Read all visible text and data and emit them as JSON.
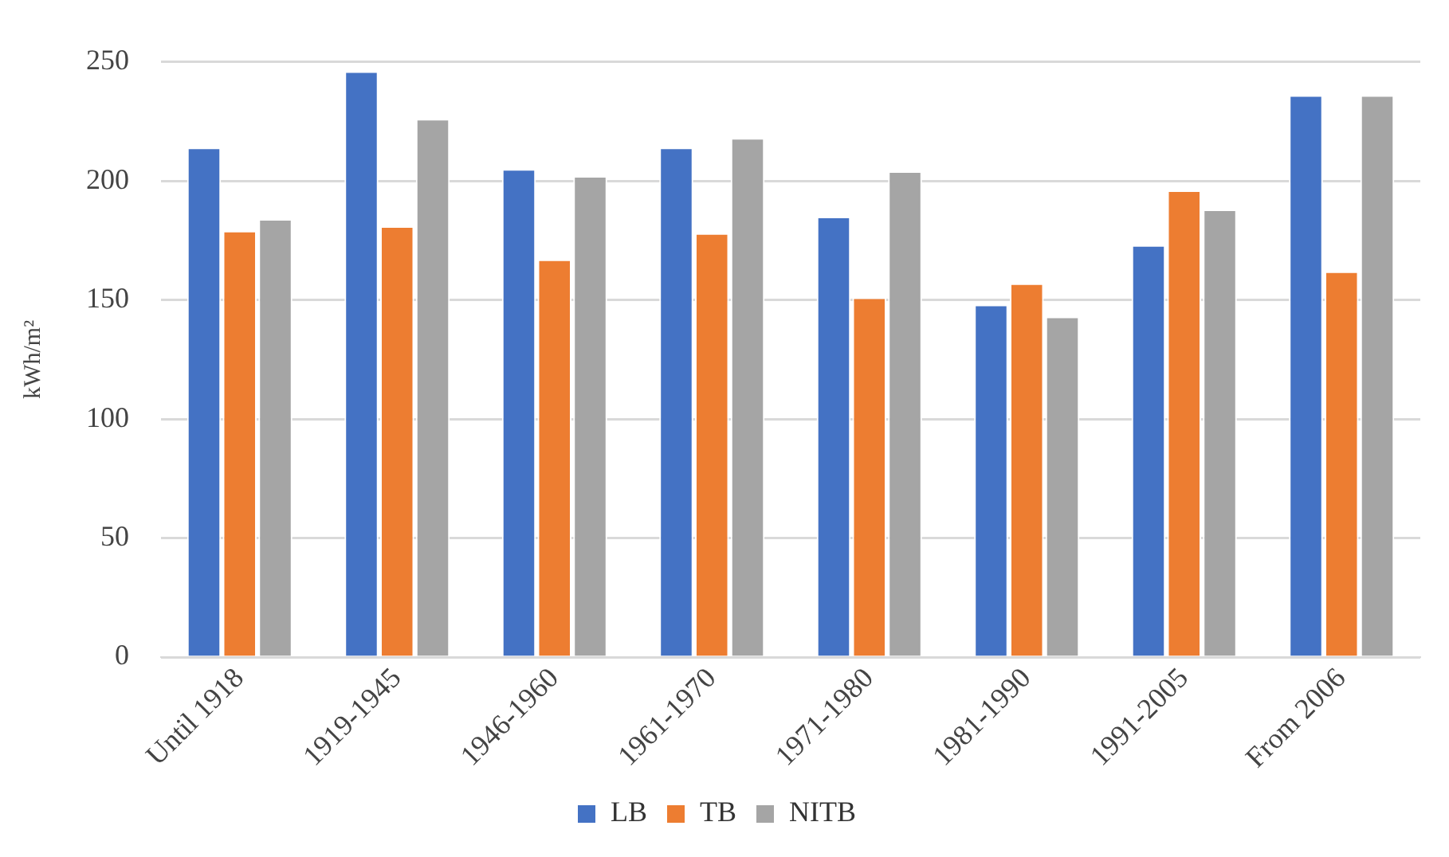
{
  "chart_data": {
    "type": "bar",
    "ylabel": "kWh/m²",
    "categories": [
      "Until 1918",
      "1919-1945",
      "1946-1960",
      "1961-1970",
      "1971-1980",
      "1981-1990",
      "1991-2005",
      "From 2006"
    ],
    "series": [
      {
        "name": "LB",
        "color": "#4472c4",
        "values": [
          214,
          246,
          205,
          214,
          185,
          148,
          173,
          236
        ]
      },
      {
        "name": "TB",
        "color": "#ed7d31",
        "values": [
          179,
          181,
          167,
          178,
          151,
          157,
          196,
          162
        ]
      },
      {
        "name": "NITB",
        "color": "#a5a5a5",
        "values": [
          184,
          226,
          202,
          218,
          204,
          143,
          188,
          236
        ]
      }
    ],
    "ylim": [
      0,
      250
    ],
    "yticks": [
      0,
      50,
      100,
      150,
      200,
      250
    ],
    "grid": "y",
    "legend": "bottom"
  }
}
